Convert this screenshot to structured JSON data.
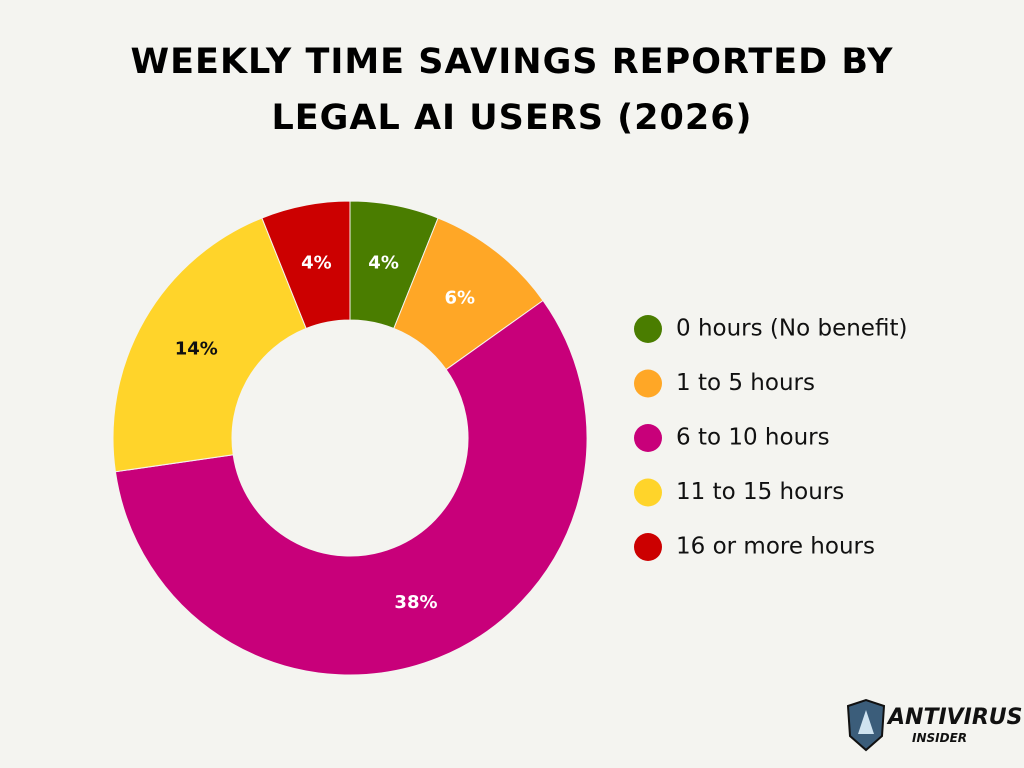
{
  "chart_data": {
    "type": "donut",
    "title": "Weekly Time Savings Reported by Legal AI Users (2026)",
    "categories": [
      "0 hours (No benefit)",
      "1 to 5 hours",
      "6 to 10 hours",
      "11 to 15 hours",
      "16 or more hours"
    ],
    "values": [
      4,
      6,
      38,
      14,
      4
    ],
    "value_labels": [
      "4%",
      "6%",
      "38%",
      "14%",
      "4%"
    ],
    "colors": [
      "#4a7d00",
      "#ffa726",
      "#c8007a",
      "#ffd42a",
      "#cc0000"
    ],
    "legend": "right"
  },
  "brand": {
    "name": "ANTIVIRUS",
    "sub": "INSIDER"
  }
}
